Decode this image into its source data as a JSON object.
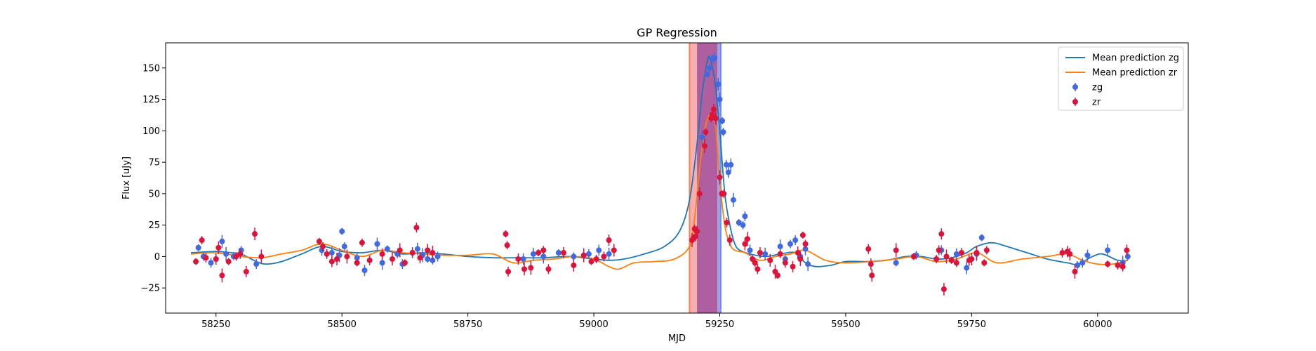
{
  "chart_data": {
    "type": "scatter",
    "title": "GP Regression",
    "xlabel": "MJD",
    "ylabel": "Flux [uJy]",
    "xlim": [
      58150,
      60180
    ],
    "ylim": [
      -45,
      170
    ],
    "xticks": [
      58250,
      58500,
      58750,
      59000,
      59250,
      59500,
      59750,
      60000
    ],
    "yticks": [
      -25,
      0,
      25,
      50,
      75,
      100,
      125,
      150
    ],
    "grid": false,
    "legend_position": "top-right",
    "legend": [
      "Mean prediction zg",
      "Mean prediction zr",
      "zg",
      "zr"
    ],
    "colors": {
      "mean_zg": "#1f77b4",
      "mean_zr": "#ff7f0e",
      "points_zg": "#4169e1",
      "points_zr": "#dc143c",
      "band_zr": "#f4a0a0",
      "band_zg": "#8a7fd8",
      "band_zr_edge": "#ff7f50",
      "band_zg_edge": "#6495ed",
      "band_overlap": "#b05a9a"
    },
    "shaded_regions": [
      {
        "band": "zr",
        "x": [
          59190,
          59245
        ]
      },
      {
        "band": "zg",
        "x": [
          59205,
          59252
        ]
      }
    ],
    "series": [
      {
        "name": "Mean prediction zg",
        "kind": "line",
        "x": [
          58200,
          58250,
          58280,
          58300,
          58330,
          58350,
          58380,
          58420,
          58460,
          58500,
          58540,
          58580,
          58620,
          58660,
          58700,
          58750,
          58800,
          58850,
          58900,
          58950,
          59000,
          59030,
          59060,
          59100,
          59140,
          59170,
          59190,
          59205,
          59215,
          59225,
          59230,
          59240,
          59250,
          59260,
          59270,
          59280,
          59290,
          59310,
          59340,
          59370,
          59400,
          59420,
          59440,
          59470,
          59500,
          59540,
          59580,
          59620,
          59650,
          59680,
          59710,
          59740,
          59760,
          59790,
          59820,
          59860,
          59900,
          59940,
          59960,
          59990,
          60010,
          60040,
          60060
        ],
        "y": [
          3,
          4,
          3,
          2,
          -4,
          -6,
          -4,
          2,
          8,
          4,
          3,
          5,
          2,
          3,
          2,
          0,
          -1,
          -1,
          -1,
          0,
          -2,
          -3,
          -2,
          2,
          8,
          20,
          45,
          90,
          130,
          155,
          158,
          140,
          100,
          50,
          25,
          10,
          5,
          2,
          0,
          2,
          3,
          -5,
          -8,
          -7,
          -4,
          -4,
          -3,
          0,
          0,
          -2,
          -1,
          3,
          8,
          11,
          8,
          3,
          -2,
          -5,
          -6,
          0,
          2,
          -3,
          -3
        ]
      },
      {
        "name": "Mean prediction zr",
        "kind": "line",
        "x": [
          58200,
          58250,
          58300,
          58340,
          58380,
          58420,
          58460,
          58500,
          58540,
          58580,
          58620,
          58660,
          58700,
          58750,
          58800,
          58840,
          58880,
          58920,
          58960,
          59000,
          59030,
          59050,
          59080,
          59120,
          59160,
          59190,
          59200,
          59210,
          59220,
          59230,
          59240,
          59250,
          59260,
          59270,
          59280,
          59300,
          59330,
          59360,
          59390,
          59420,
          59460,
          59500,
          59550,
          59600,
          59640,
          59680,
          59720,
          59760,
          59800,
          59850,
          59900,
          59940,
          59970,
          60000,
          60030,
          60060
        ],
        "y": [
          2,
          3,
          0,
          -1,
          2,
          5,
          10,
          5,
          0,
          5,
          3,
          2,
          1,
          1,
          2,
          -5,
          -3,
          -2,
          0,
          -2,
          -8,
          -10,
          -5,
          -4,
          -2,
          8,
          30,
          70,
          100,
          113,
          110,
          60,
          25,
          10,
          5,
          3,
          -3,
          0,
          2,
          5,
          -3,
          -5,
          -4,
          -2,
          0,
          -4,
          -2,
          3,
          -5,
          -2,
          0,
          2,
          -3,
          -6,
          -6,
          -3
        ]
      },
      {
        "name": "zg",
        "kind": "points",
        "points": [
          [
            58215,
            7
          ],
          [
            58225,
            0
          ],
          [
            58240,
            -5
          ],
          [
            58250,
            -2
          ],
          [
            58262,
            12
          ],
          [
            58270,
            2
          ],
          [
            58285,
            0
          ],
          [
            58300,
            5
          ],
          [
            58330,
            -6
          ],
          [
            58460,
            5
          ],
          [
            58480,
            3
          ],
          [
            58495,
            1
          ],
          [
            58500,
            20
          ],
          [
            58505,
            8
          ],
          [
            58530,
            -1
          ],
          [
            58545,
            -11
          ],
          [
            58570,
            10
          ],
          [
            58580,
            -5
          ],
          [
            58590,
            6
          ],
          [
            58610,
            2
          ],
          [
            58620,
            -6
          ],
          [
            58640,
            3
          ],
          [
            58650,
            6
          ],
          [
            58660,
            1
          ],
          [
            58670,
            -2
          ],
          [
            58680,
            -3
          ],
          [
            58690,
            0
          ],
          [
            58860,
            -2
          ],
          [
            58880,
            2
          ],
          [
            58900,
            0
          ],
          [
            58930,
            3
          ],
          [
            58960,
            0
          ],
          [
            58990,
            2
          ],
          [
            59010,
            5
          ],
          [
            59030,
            2
          ],
          [
            59215,
            95
          ],
          [
            59225,
            145
          ],
          [
            59230,
            150
          ],
          [
            59235,
            157
          ],
          [
            59240,
            158
          ],
          [
            59247,
            137
          ],
          [
            59250,
            125
          ],
          [
            59255,
            108
          ],
          [
            59257,
            99
          ],
          [
            59263,
            73
          ],
          [
            59267,
            67
          ],
          [
            59272,
            73
          ],
          [
            59277,
            45
          ],
          [
            59288,
            27
          ],
          [
            59296,
            25
          ],
          [
            59300,
            32
          ],
          [
            59310,
            5
          ],
          [
            59340,
            2
          ],
          [
            59370,
            8
          ],
          [
            59380,
            -2
          ],
          [
            59390,
            10
          ],
          [
            59400,
            13
          ],
          [
            59410,
            0
          ],
          [
            59420,
            6
          ],
          [
            59425,
            -6
          ],
          [
            59600,
            -5
          ],
          [
            59640,
            1
          ],
          [
            59690,
            5
          ],
          [
            59720,
            2
          ],
          [
            59740,
            -9
          ],
          [
            59760,
            2
          ],
          [
            59770,
            15
          ],
          [
            59960,
            -7
          ],
          [
            59970,
            -5
          ],
          [
            59980,
            1
          ],
          [
            60020,
            5
          ],
          [
            60050,
            -5
          ],
          [
            60060,
            0
          ]
        ]
      },
      {
        "name": "zr",
        "kind": "points",
        "points": [
          [
            58210,
            -4
          ],
          [
            58222,
            13
          ],
          [
            58230,
            -1
          ],
          [
            58250,
            -2
          ],
          [
            58255,
            7
          ],
          [
            58262,
            -15
          ],
          [
            58275,
            -4
          ],
          [
            58290,
            0
          ],
          [
            58298,
            2
          ],
          [
            58310,
            -12
          ],
          [
            58327,
            18
          ],
          [
            58340,
            0
          ],
          [
            58455,
            12
          ],
          [
            58462,
            8
          ],
          [
            58470,
            2
          ],
          [
            58480,
            -4
          ],
          [
            58490,
            -2
          ],
          [
            58510,
            0
          ],
          [
            58530,
            -5
          ],
          [
            58540,
            11
          ],
          [
            58555,
            -3
          ],
          [
            58580,
            2
          ],
          [
            58600,
            -2
          ],
          [
            58615,
            5
          ],
          [
            58625,
            -5
          ],
          [
            58640,
            3
          ],
          [
            58648,
            23
          ],
          [
            58655,
            -1
          ],
          [
            58670,
            5
          ],
          [
            58680,
            3
          ],
          [
            58825,
            18
          ],
          [
            58828,
            9
          ],
          [
            58830,
            -12
          ],
          [
            58850,
            -2
          ],
          [
            58862,
            -10
          ],
          [
            58875,
            -9
          ],
          [
            58890,
            3
          ],
          [
            58900,
            5
          ],
          [
            58910,
            -10
          ],
          [
            58940,
            3
          ],
          [
            58960,
            -7
          ],
          [
            58980,
            1
          ],
          [
            58995,
            -4
          ],
          [
            59005,
            -2
          ],
          [
            59020,
            0
          ],
          [
            59030,
            13
          ],
          [
            59040,
            5
          ],
          [
            59195,
            13
          ],
          [
            59198,
            15
          ],
          [
            59200,
            22
          ],
          [
            59202,
            16
          ],
          [
            59205,
            20
          ],
          [
            59210,
            50
          ],
          [
            59220,
            88
          ],
          [
            59222,
            99
          ],
          [
            59233,
            110
          ],
          [
            59235,
            113
          ],
          [
            59238,
            117
          ],
          [
            59242,
            110
          ],
          [
            59250,
            63
          ],
          [
            59254,
            50
          ],
          [
            59258,
            50
          ],
          [
            59264,
            27
          ],
          [
            59270,
            13
          ],
          [
            59300,
            10
          ],
          [
            59305,
            14
          ],
          [
            59315,
            -2
          ],
          [
            59320,
            -5
          ],
          [
            59325,
            -10
          ],
          [
            59330,
            3
          ],
          [
            59350,
            -3
          ],
          [
            59360,
            -12
          ],
          [
            59365,
            -15
          ],
          [
            59370,
            2
          ],
          [
            59380,
            -5
          ],
          [
            59395,
            -8
          ],
          [
            59405,
            3
          ],
          [
            59410,
            -2
          ],
          [
            59415,
            17
          ],
          [
            59420,
            10
          ],
          [
            59545,
            6
          ],
          [
            59550,
            -6
          ],
          [
            59552,
            -15
          ],
          [
            59600,
            5
          ],
          [
            59635,
            0
          ],
          [
            59680,
            -2
          ],
          [
            59685,
            5
          ],
          [
            59690,
            18
          ],
          [
            59695,
            -26
          ],
          [
            59700,
            0
          ],
          [
            59710,
            -3
          ],
          [
            59720,
            -5
          ],
          [
            59730,
            3
          ],
          [
            59745,
            -3
          ],
          [
            59750,
            -2
          ],
          [
            59760,
            3
          ],
          [
            59775,
            -5
          ],
          [
            59780,
            5
          ],
          [
            59930,
            3
          ],
          [
            59940,
            4
          ],
          [
            59945,
            2
          ],
          [
            59955,
            -12
          ],
          [
            60020,
            -6
          ],
          [
            60040,
            -7
          ],
          [
            60050,
            -8
          ],
          [
            60058,
            5
          ]
        ]
      }
    ]
  }
}
